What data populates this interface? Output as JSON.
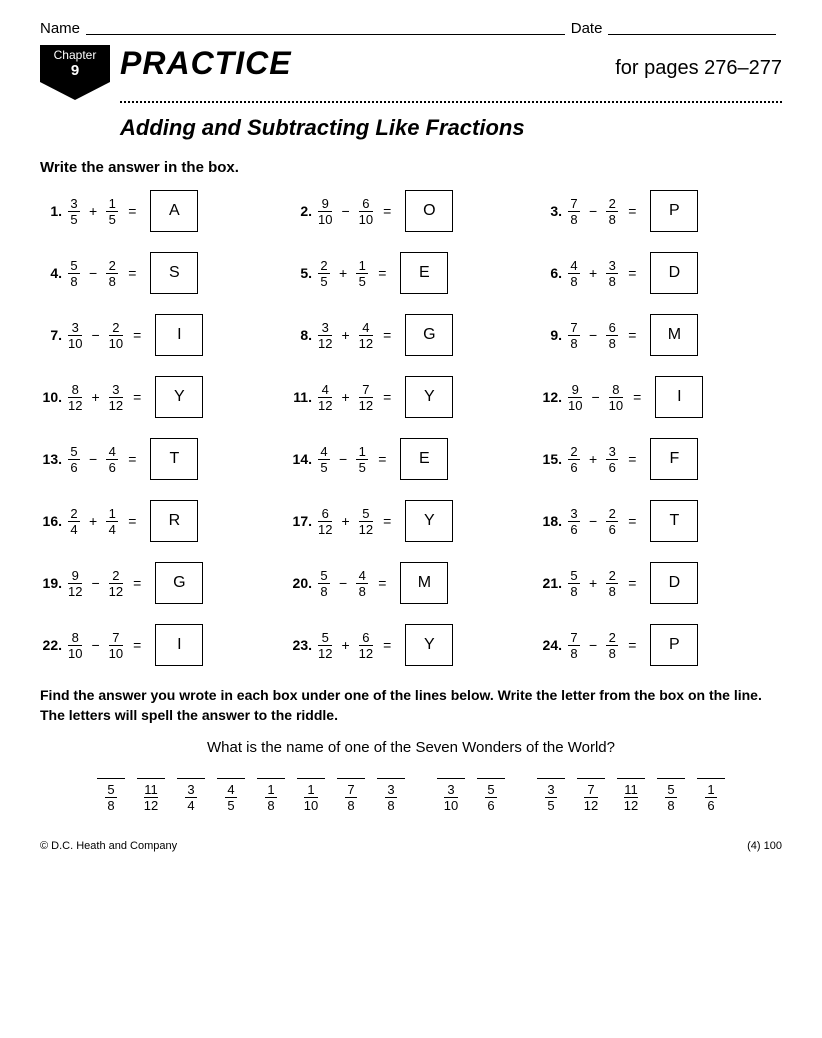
{
  "header": {
    "name_label": "Name",
    "date_label": "Date"
  },
  "chapter": {
    "label": "Chapter",
    "num": "9"
  },
  "title": {
    "practice": "PRACTICE",
    "pages": "for pages 276–277",
    "subtitle": "Adding and Subtracting Like Fractions"
  },
  "instruction": "Write the answer in the box.",
  "problems": [
    {
      "n": "1.",
      "a_n": "3",
      "a_d": "5",
      "op": "+",
      "b_n": "1",
      "b_d": "5",
      "ans": "A"
    },
    {
      "n": "2.",
      "a_n": "9",
      "a_d": "10",
      "op": "−",
      "b_n": "6",
      "b_d": "10",
      "ans": "O"
    },
    {
      "n": "3.",
      "a_n": "7",
      "a_d": "8",
      "op": "−",
      "b_n": "2",
      "b_d": "8",
      "ans": "P"
    },
    {
      "n": "4.",
      "a_n": "5",
      "a_d": "8",
      "op": "−",
      "b_n": "2",
      "b_d": "8",
      "ans": "S"
    },
    {
      "n": "5.",
      "a_n": "2",
      "a_d": "5",
      "op": "+",
      "b_n": "1",
      "b_d": "5",
      "ans": "E"
    },
    {
      "n": "6.",
      "a_n": "4",
      "a_d": "8",
      "op": "+",
      "b_n": "3",
      "b_d": "8",
      "ans": "D"
    },
    {
      "n": "7.",
      "a_n": "3",
      "a_d": "10",
      "op": "−",
      "b_n": "2",
      "b_d": "10",
      "ans": "I"
    },
    {
      "n": "8.",
      "a_n": "3",
      "a_d": "12",
      "op": "+",
      "b_n": "4",
      "b_d": "12",
      "ans": "G"
    },
    {
      "n": "9.",
      "a_n": "7",
      "a_d": "8",
      "op": "−",
      "b_n": "6",
      "b_d": "8",
      "ans": "M"
    },
    {
      "n": "10.",
      "a_n": "8",
      "a_d": "12",
      "op": "+",
      "b_n": "3",
      "b_d": "12",
      "ans": "Y"
    },
    {
      "n": "11.",
      "a_n": "4",
      "a_d": "12",
      "op": "+",
      "b_n": "7",
      "b_d": "12",
      "ans": "Y"
    },
    {
      "n": "12.",
      "a_n": "9",
      "a_d": "10",
      "op": "−",
      "b_n": "8",
      "b_d": "10",
      "ans": "I"
    },
    {
      "n": "13.",
      "a_n": "5",
      "a_d": "6",
      "op": "−",
      "b_n": "4",
      "b_d": "6",
      "ans": "T"
    },
    {
      "n": "14.",
      "a_n": "4",
      "a_d": "5",
      "op": "−",
      "b_n": "1",
      "b_d": "5",
      "ans": "E"
    },
    {
      "n": "15.",
      "a_n": "2",
      "a_d": "6",
      "op": "+",
      "b_n": "3",
      "b_d": "6",
      "ans": "F"
    },
    {
      "n": "16.",
      "a_n": "2",
      "a_d": "4",
      "op": "+",
      "b_n": "1",
      "b_d": "4",
      "ans": "R"
    },
    {
      "n": "17.",
      "a_n": "6",
      "a_d": "12",
      "op": "+",
      "b_n": "5",
      "b_d": "12",
      "ans": "Y"
    },
    {
      "n": "18.",
      "a_n": "3",
      "a_d": "6",
      "op": "−",
      "b_n": "2",
      "b_d": "6",
      "ans": "T"
    },
    {
      "n": "19.",
      "a_n": "9",
      "a_d": "12",
      "op": "−",
      "b_n": "2",
      "b_d": "12",
      "ans": "G"
    },
    {
      "n": "20.",
      "a_n": "5",
      "a_d": "8",
      "op": "−",
      "b_n": "4",
      "b_d": "8",
      "ans": "M"
    },
    {
      "n": "21.",
      "a_n": "5",
      "a_d": "8",
      "op": "+",
      "b_n": "2",
      "b_d": "8",
      "ans": "D"
    },
    {
      "n": "22.",
      "a_n": "8",
      "a_d": "10",
      "op": "−",
      "b_n": "7",
      "b_d": "10",
      "ans": "I"
    },
    {
      "n": "23.",
      "a_n": "5",
      "a_d": "12",
      "op": "+",
      "b_n": "6",
      "b_d": "12",
      "ans": "Y"
    },
    {
      "n": "24.",
      "a_n": "7",
      "a_d": "8",
      "op": "−",
      "b_n": "2",
      "b_d": "8",
      "ans": "P"
    }
  ],
  "bottom_instr": "Find the answer you wrote in each box under one of the lines below. Write the letter from the box on the line. The letters will spell the answer to the riddle.",
  "riddle_q": "What is the name of one of the Seven Wonders of the World?",
  "riddle": [
    {
      "t": "frac",
      "n": "5",
      "d": "8"
    },
    {
      "t": "frac",
      "n": "11",
      "d": "12"
    },
    {
      "t": "frac",
      "n": "3",
      "d": "4"
    },
    {
      "t": "frac",
      "n": "4",
      "d": "5"
    },
    {
      "t": "frac",
      "n": "1",
      "d": "8"
    },
    {
      "t": "frac",
      "n": "1",
      "d": "10"
    },
    {
      "t": "frac",
      "n": "7",
      "d": "8"
    },
    {
      "t": "frac",
      "n": "3",
      "d": "8"
    },
    {
      "t": "gap"
    },
    {
      "t": "frac",
      "n": "3",
      "d": "10"
    },
    {
      "t": "frac",
      "n": "5",
      "d": "6"
    },
    {
      "t": "gap"
    },
    {
      "t": "frac",
      "n": "3",
      "d": "5"
    },
    {
      "t": "frac",
      "n": "7",
      "d": "12"
    },
    {
      "t": "frac",
      "n": "11",
      "d": "12"
    },
    {
      "t": "frac",
      "n": "5",
      "d": "8"
    },
    {
      "t": "frac",
      "n": "1",
      "d": "6"
    }
  ],
  "footer": {
    "copyright": "© D.C. Heath and Company",
    "pagecode": "(4)   100"
  }
}
